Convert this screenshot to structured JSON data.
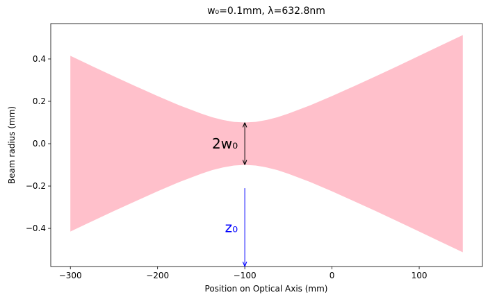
{
  "chart_data": {
    "type": "fill_between",
    "title": "w₀=0.1mm, λ=632.8nm",
    "x_label": "Position on Optical Axis (mm)",
    "y_label": "Beam radius (mm)",
    "x": [
      -300,
      -275,
      -250,
      -225,
      -200,
      -175,
      -150,
      -137.5,
      -125,
      -112.5,
      -100,
      -87.5,
      -75,
      -62.5,
      -50,
      -25,
      0,
      25,
      50,
      75,
      100,
      125,
      150
    ],
    "area": {
      "color": "#ffc0cb",
      "upper": [
        0.415,
        0.366,
        0.318,
        0.271,
        0.225,
        0.181,
        0.142,
        0.125,
        0.112,
        0.103,
        0.1,
        0.103,
        0.112,
        0.125,
        0.142,
        0.181,
        0.225,
        0.271,
        0.318,
        0.366,
        0.415,
        0.464,
        0.513
      ],
      "lower": [
        -0.415,
        -0.366,
        -0.318,
        -0.271,
        -0.225,
        -0.181,
        -0.142,
        -0.125,
        -0.112,
        -0.103,
        -0.1,
        -0.103,
        -0.112,
        -0.125,
        -0.142,
        -0.181,
        -0.225,
        -0.271,
        -0.318,
        -0.366,
        -0.415,
        -0.464,
        -0.513
      ]
    },
    "annotations": [
      {
        "text": "2w₀",
        "x": -100,
        "y_from": 0.1,
        "y_to": -0.1,
        "color": "#000000",
        "both_heads": true
      },
      {
        "text": "z₀",
        "x": -100,
        "y_from": -0.21,
        "y_to": -0.58,
        "color": "#0000ff",
        "both_heads": false
      }
    ],
    "xlim": [
      -322.5,
      172.5
    ],
    "ylim": [
      -0.58,
      0.567
    ],
    "xticks": [
      {
        "value": -300,
        "label": "−300"
      },
      {
        "value": -200,
        "label": "−200"
      },
      {
        "value": -100,
        "label": "−100"
      },
      0,
      100
    ],
    "yticks": [
      {
        "value": -0.4,
        "label": "−0.4"
      },
      {
        "value": -0.2,
        "label": "−0.2"
      },
      {
        "value": 0,
        "label": "0.0"
      },
      0.2,
      0.4
    ]
  }
}
